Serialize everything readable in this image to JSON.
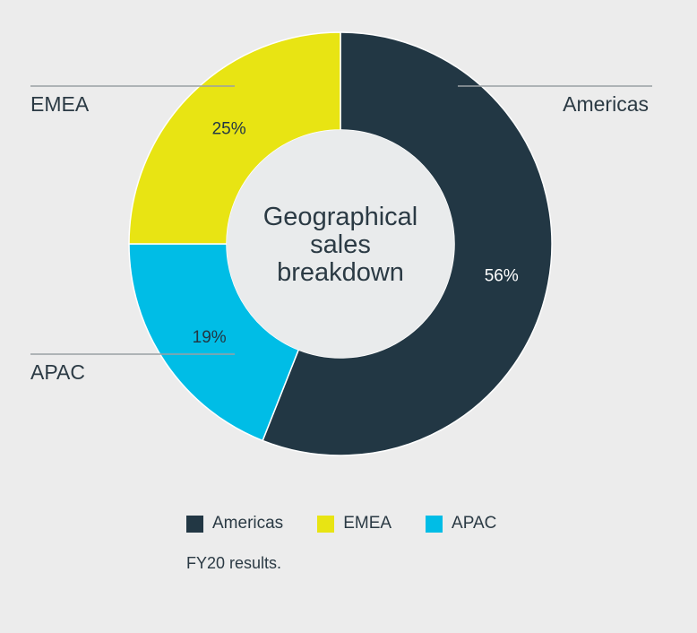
{
  "chart_data": {
    "type": "pie",
    "variant": "donut",
    "title": "Geographical sales breakdown",
    "title_lines": [
      "Geographical",
      "sales",
      "breakdown"
    ],
    "slices": [
      {
        "label": "Americas",
        "value": 56,
        "value_label": "56%",
        "color": "#223744",
        "label_color": "#ffffff"
      },
      {
        "label": "APAC",
        "value": 19,
        "value_label": "19%",
        "color": "#00bde6",
        "label_color": "#223744"
      },
      {
        "label": "EMEA",
        "value": 25,
        "value_label": "25%",
        "color": "#e8e413",
        "label_color": "#223744"
      }
    ],
    "legend": [
      "Americas",
      "EMEA",
      "APAC"
    ],
    "footnote": "FY20 results."
  },
  "colors": {
    "background": "#ececec",
    "hole": "#e9ebec",
    "leader_line": "#9aa0a4",
    "text": "#2b3a44"
  }
}
